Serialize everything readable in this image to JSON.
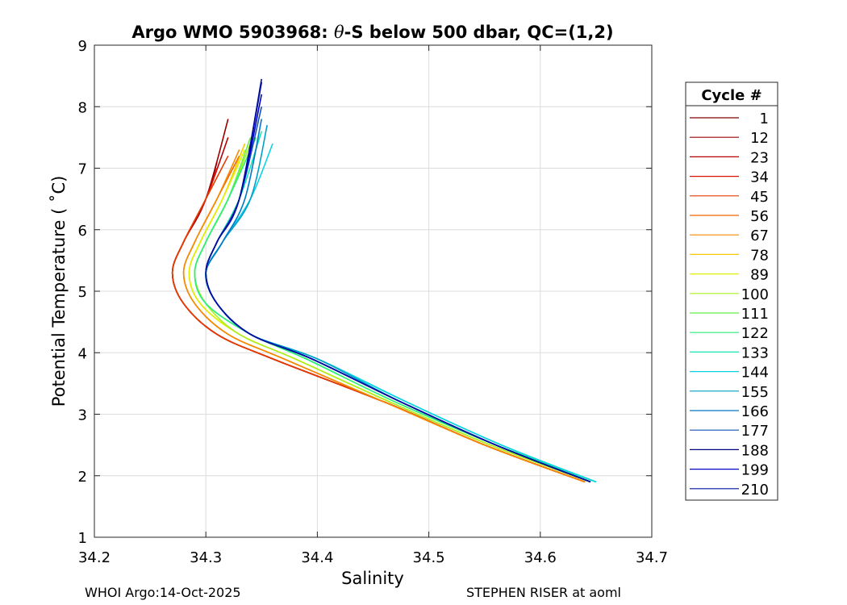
{
  "chart_data": {
    "type": "line",
    "title_prefix": "Argo WMO 5903968: ",
    "title_theta": "θ",
    "title_suffix": "-S below 500 dbar,  QC=(1,2)",
    "xlabel": "Salinity",
    "ylabel": "Potential Temperature ( ˚C)",
    "xlim": [
      34.2,
      34.7
    ],
    "ylim": [
      1,
      9
    ],
    "xticks": [
      "34.2",
      "34.3",
      "34.4",
      "34.5",
      "34.6",
      "34.7"
    ],
    "yticks": [
      "1",
      "2",
      "3",
      "4",
      "5",
      "6",
      "7",
      "8",
      "9"
    ],
    "grid": true,
    "legend_position": "outside-right",
    "legend_title": "Cycle #",
    "legend": [
      {
        "label": "1",
        "color": "#800000"
      },
      {
        "label": "12",
        "color": "#9a0000"
      },
      {
        "label": "23",
        "color": "#b80000"
      },
      {
        "label": "34",
        "color": "#d71400"
      },
      {
        "label": "45",
        "color": "#e63c00"
      },
      {
        "label": "56",
        "color": "#f06400"
      },
      {
        "label": "67",
        "color": "#f58c00"
      },
      {
        "label": "78",
        "color": "#f5c800"
      },
      {
        "label": "89",
        "color": "#e0f000"
      },
      {
        "label": "100",
        "color": "#aaf01e"
      },
      {
        "label": "111",
        "color": "#64f046"
      },
      {
        "label": "122",
        "color": "#28f07a"
      },
      {
        "label": "133",
        "color": "#14e6b4"
      },
      {
        "label": "144",
        "color": "#0ad2e6"
      },
      {
        "label": "155",
        "color": "#00a0c8"
      },
      {
        "label": "166",
        "color": "#0078c8"
      },
      {
        "label": "177",
        "color": "#1450b4"
      },
      {
        "label": "188",
        "color": "#000080"
      },
      {
        "label": "199",
        "color": "#0000c8"
      },
      {
        "label": "210",
        "color": "#0010a0"
      }
    ],
    "series": [
      {
        "name": "1",
        "color": "#800000",
        "S": [
          34.64,
          34.55,
          34.46,
          34.36,
          34.31,
          34.28,
          34.27,
          34.28,
          34.3,
          34.31
        ],
        "T": [
          1.9,
          2.5,
          3.2,
          3.9,
          4.3,
          4.8,
          5.3,
          5.8,
          6.5,
          7.1
        ]
      },
      {
        "name": "12",
        "color": "#9a0000",
        "S": [
          34.64,
          34.55,
          34.46,
          34.36,
          34.31,
          34.28,
          34.27,
          34.28,
          34.3,
          34.32
        ],
        "T": [
          1.9,
          2.5,
          3.2,
          3.9,
          4.3,
          4.8,
          5.3,
          5.8,
          6.5,
          7.8
        ]
      },
      {
        "name": "23",
        "color": "#b80000",
        "S": [
          34.64,
          34.55,
          34.46,
          34.36,
          34.31,
          34.28,
          34.27,
          34.28,
          34.3,
          34.32
        ],
        "T": [
          1.9,
          2.5,
          3.2,
          3.9,
          4.3,
          4.8,
          5.3,
          5.8,
          6.5,
          7.5
        ]
      },
      {
        "name": "34",
        "color": "#d71400",
        "S": [
          34.64,
          34.55,
          34.46,
          34.36,
          34.31,
          34.28,
          34.27,
          34.28,
          34.3,
          34.31
        ],
        "T": [
          1.9,
          2.5,
          3.2,
          3.9,
          4.3,
          4.8,
          5.3,
          5.8,
          6.5,
          7.0
        ]
      },
      {
        "name": "45",
        "color": "#e63c00",
        "S": [
          34.64,
          34.55,
          34.46,
          34.36,
          34.31,
          34.28,
          34.27,
          34.28,
          34.3,
          34.32
        ],
        "T": [
          1.9,
          2.5,
          3.2,
          3.9,
          4.3,
          4.8,
          5.3,
          5.8,
          6.5,
          7.2
        ]
      },
      {
        "name": "56",
        "color": "#f06400",
        "S": [
          34.64,
          34.55,
          34.46,
          34.37,
          34.32,
          34.29,
          34.28,
          34.29,
          34.31,
          34.33
        ],
        "T": [
          1.9,
          2.5,
          3.2,
          3.9,
          4.3,
          4.8,
          5.3,
          5.8,
          6.5,
          7.2
        ]
      },
      {
        "name": "67",
        "color": "#f58c00",
        "S": [
          34.64,
          34.55,
          34.46,
          34.37,
          34.32,
          34.29,
          34.28,
          34.29,
          34.31,
          34.33
        ],
        "T": [
          1.9,
          2.5,
          3.2,
          3.9,
          4.3,
          4.8,
          5.3,
          5.8,
          6.5,
          7.3
        ]
      },
      {
        "name": "78",
        "color": "#f5c800",
        "S": [
          34.645,
          34.555,
          34.465,
          34.38,
          34.33,
          34.295,
          34.285,
          34.295,
          34.315,
          34.335
        ],
        "T": [
          1.9,
          2.5,
          3.2,
          3.9,
          4.3,
          4.8,
          5.3,
          5.8,
          6.5,
          7.4
        ]
      },
      {
        "name": "89",
        "color": "#e0f000",
        "S": [
          34.645,
          34.555,
          34.465,
          34.38,
          34.33,
          34.295,
          34.285,
          34.295,
          34.315,
          34.335
        ],
        "T": [
          1.9,
          2.5,
          3.2,
          3.9,
          4.3,
          4.8,
          5.3,
          5.8,
          6.5,
          7.3
        ]
      },
      {
        "name": "100",
        "color": "#aaf01e",
        "S": [
          34.645,
          34.555,
          34.465,
          34.38,
          34.33,
          34.3,
          34.29,
          34.3,
          34.32,
          34.34
        ],
        "T": [
          1.9,
          2.5,
          3.2,
          3.9,
          4.3,
          4.8,
          5.3,
          5.8,
          6.5,
          7.4
        ]
      },
      {
        "name": "111",
        "color": "#64f046",
        "S": [
          34.65,
          34.56,
          34.47,
          34.39,
          34.34,
          34.3,
          34.29,
          34.3,
          34.32,
          34.34
        ],
        "T": [
          1.9,
          2.5,
          3.2,
          3.9,
          4.3,
          4.8,
          5.3,
          5.8,
          6.5,
          7.5
        ]
      },
      {
        "name": "122",
        "color": "#28f07a",
        "S": [
          34.65,
          34.56,
          34.47,
          34.39,
          34.34,
          34.3,
          34.29,
          34.3,
          34.32,
          34.345
        ],
        "T": [
          1.9,
          2.5,
          3.2,
          3.9,
          4.3,
          4.8,
          5.3,
          5.8,
          6.5,
          7.5
        ]
      },
      {
        "name": "133",
        "color": "#14e6b4",
        "S": [
          34.65,
          34.565,
          34.48,
          34.4,
          34.34,
          34.31,
          34.3,
          34.31,
          34.33,
          34.35
        ],
        "T": [
          1.9,
          2.5,
          3.2,
          3.9,
          4.3,
          4.8,
          5.3,
          5.8,
          6.5,
          7.6
        ]
      },
      {
        "name": "144",
        "color": "#0ad2e6",
        "S": [
          34.65,
          34.565,
          34.48,
          34.4,
          34.34,
          34.31,
          34.3,
          34.315,
          34.34,
          34.36
        ],
        "T": [
          1.9,
          2.5,
          3.2,
          3.9,
          4.3,
          4.8,
          5.3,
          5.8,
          6.5,
          7.4
        ]
      },
      {
        "name": "155",
        "color": "#00a0c8",
        "S": [
          34.645,
          34.56,
          34.475,
          34.4,
          34.34,
          34.31,
          34.3,
          34.315,
          34.34,
          34.355
        ],
        "T": [
          1.9,
          2.5,
          3.2,
          3.9,
          4.3,
          4.8,
          5.3,
          5.8,
          6.5,
          7.7
        ]
      },
      {
        "name": "166",
        "color": "#0078c8",
        "S": [
          34.645,
          34.56,
          34.475,
          34.395,
          34.34,
          34.31,
          34.3,
          34.315,
          34.335,
          34.35
        ],
        "T": [
          1.9,
          2.5,
          3.2,
          3.9,
          4.3,
          4.8,
          5.3,
          5.8,
          6.5,
          7.8
        ]
      },
      {
        "name": "177",
        "color": "#1450b4",
        "S": [
          34.645,
          34.56,
          34.475,
          34.395,
          34.34,
          34.31,
          34.3,
          34.31,
          34.33,
          34.35
        ],
        "T": [
          1.9,
          2.5,
          3.2,
          3.9,
          4.3,
          4.8,
          5.3,
          5.8,
          6.5,
          8.0
        ]
      },
      {
        "name": "188",
        "color": "#000080",
        "S": [
          34.645,
          34.56,
          34.475,
          34.395,
          34.34,
          34.31,
          34.3,
          34.31,
          34.33,
          34.35
        ],
        "T": [
          1.9,
          2.5,
          3.2,
          3.9,
          4.3,
          4.8,
          5.3,
          5.8,
          6.5,
          8.4
        ]
      },
      {
        "name": "199",
        "color": "#0000c8",
        "S": [
          34.645,
          34.56,
          34.475,
          34.395,
          34.34,
          34.31,
          34.3,
          34.31,
          34.33,
          34.35
        ],
        "T": [
          1.9,
          2.5,
          3.2,
          3.9,
          4.3,
          4.8,
          5.3,
          5.8,
          6.5,
          8.2
        ]
      },
      {
        "name": "210",
        "color": "#0010a0",
        "S": [
          34.645,
          34.56,
          34.475,
          34.395,
          34.34,
          34.31,
          34.3,
          34.31,
          34.33,
          34.35
        ],
        "T": [
          1.9,
          2.5,
          3.2,
          3.9,
          4.3,
          4.8,
          5.3,
          5.8,
          6.5,
          8.45
        ]
      }
    ]
  },
  "footer": {
    "left": "WHOI Argo:14-Oct-2025",
    "right": "STEPHEN RISER at aoml"
  }
}
